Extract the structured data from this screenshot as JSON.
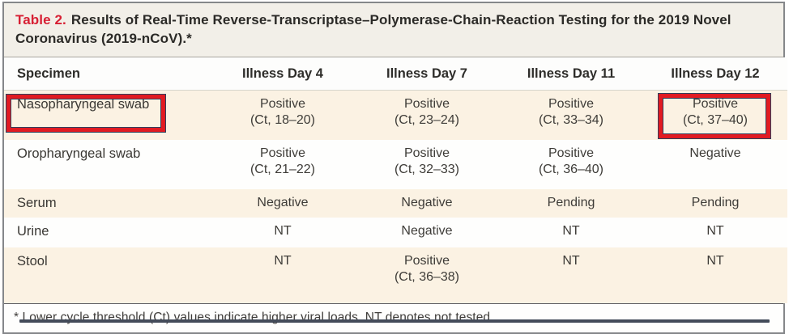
{
  "title": {
    "label": "Table 2.",
    "text": "Results of Real-Time Reverse-Transcriptase–Polymerase-Chain-Reaction Testing for the 2019 Novel Coronavirus (2019-nCoV).*"
  },
  "table": {
    "columns": [
      "Specimen",
      "Illness Day 4",
      "Illness Day 7",
      "Illness Day 11",
      "Illness Day 12"
    ],
    "rows": [
      {
        "specimen": "Nasopharyngeal swab",
        "values": [
          {
            "result": "Positive",
            "ct": "(Ct, 18–20)"
          },
          {
            "result": "Positive",
            "ct": "(Ct, 23–24)"
          },
          {
            "result": "Positive",
            "ct": "(Ct, 33–34)"
          },
          {
            "result": "Positive",
            "ct": "(Ct, 37–40)"
          }
        ]
      },
      {
        "specimen": "Oropharyngeal swab",
        "values": [
          {
            "result": "Positive",
            "ct": "(Ct, 21–22)"
          },
          {
            "result": "Positive",
            "ct": "(Ct, 32–33)"
          },
          {
            "result": "Positive",
            "ct": "(Ct, 36–40)"
          },
          {
            "result": "Negative",
            "ct": ""
          }
        ]
      },
      {
        "specimen": "Serum",
        "values": [
          {
            "result": "Negative",
            "ct": ""
          },
          {
            "result": "Negative",
            "ct": ""
          },
          {
            "result": "Pending",
            "ct": ""
          },
          {
            "result": "Pending",
            "ct": ""
          }
        ]
      },
      {
        "specimen": "Urine",
        "values": [
          {
            "result": "NT",
            "ct": ""
          },
          {
            "result": "Negative",
            "ct": ""
          },
          {
            "result": "NT",
            "ct": ""
          },
          {
            "result": "NT",
            "ct": ""
          }
        ]
      },
      {
        "specimen": "Stool",
        "values": [
          {
            "result": "NT",
            "ct": ""
          },
          {
            "result": "Positive",
            "ct": "(Ct, 36–38)"
          },
          {
            "result": "NT",
            "ct": ""
          },
          {
            "result": "NT",
            "ct": ""
          }
        ]
      }
    ]
  },
  "footnote": "* Lower cycle threshold (Ct) values indicate higher viral loads. NT denotes not tested.",
  "annotations": {
    "highlighted_specimen": "Nasopharyngeal swab",
    "highlighted_cell": "Illness Day 12 – Positive (Ct, 37–40)",
    "highlight_color": "#e11b22"
  },
  "colors": {
    "title_label_red": "#d71f33",
    "title_band_bg": "#f2efe8",
    "row_cream": "#fbf2e3",
    "row_white": "#fefefd",
    "frame_border": "#85878a",
    "bottom_bar": "#434b59"
  }
}
